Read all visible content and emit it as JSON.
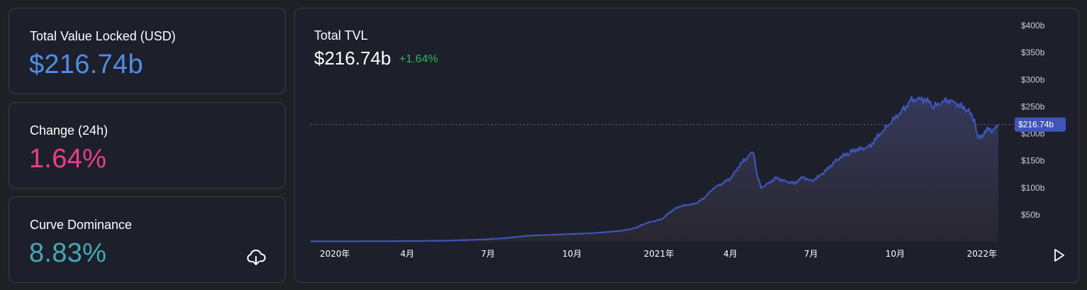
{
  "colors": {
    "tvl_value": "#4e8ee6",
    "change_value": "#e93f8d",
    "dominance_value": "#46a8b7",
    "line": "#3f55b8",
    "area_top": "#3a3d63",
    "positive_change": "#2eb457",
    "price_label_bg": "#3f55b8"
  },
  "stats": {
    "tvl": {
      "label": "Total Value Locked (USD)",
      "value": "$216.74b"
    },
    "change": {
      "label": "Change (24h)",
      "value": "1.64%"
    },
    "dominance": {
      "label": "Curve Dominance",
      "value": "8.83%",
      "download_icon": "cloud-download-icon"
    }
  },
  "chart": {
    "title": "Total TVL",
    "value": "$216.74b",
    "change": "+1.64%",
    "play_icon": "play-icon"
  },
  "chart_data": {
    "type": "area",
    "title": "Total TVL",
    "xlabel": "",
    "ylabel": "",
    "ylim": [
      0,
      400
    ],
    "y_unit": "b USD",
    "y_ticks": [
      50,
      100,
      150,
      200,
      250,
      300,
      350,
      400
    ],
    "y_tick_labels": [
      "$50b",
      "$100b",
      "$150b",
      "$200b",
      "$250b",
      "$300b",
      "$350b",
      "$400b"
    ],
    "x_tick_labels": [
      "2020年",
      "4月",
      "7月",
      "10月",
      "2021年",
      "4月",
      "7月",
      "10月",
      "2022年"
    ],
    "x_tick_dates": [
      "2020-01-01",
      "2020-04-01",
      "2020-07-01",
      "2020-10-01",
      "2021-01-01",
      "2021-04-01",
      "2021-07-01",
      "2021-10-01",
      "2022-01-01"
    ],
    "x_range": [
      "2020-01-01",
      "2022-02-16"
    ],
    "current_value": 216.74,
    "current_label": "$216.74b",
    "grid": false,
    "series": [
      {
        "x": [
          "2020-01-01",
          "2020-02-01",
          "2020-03-01",
          "2020-04-01",
          "2020-05-01",
          "2020-06-01",
          "2020-07-01",
          "2020-07-15",
          "2020-08-01",
          "2020-08-15",
          "2020-09-01",
          "2020-09-15",
          "2020-10-01",
          "2020-10-15",
          "2020-11-01",
          "2020-11-15",
          "2020-12-01",
          "2020-12-15",
          "2021-01-01",
          "2021-01-15",
          "2021-02-01",
          "2021-02-10",
          "2021-02-20",
          "2021-03-01",
          "2021-03-10",
          "2021-03-20",
          "2021-04-01",
          "2021-04-10",
          "2021-04-20",
          "2021-05-01",
          "2021-05-08",
          "2021-05-12",
          "2021-05-16",
          "2021-05-20",
          "2021-05-24",
          "2021-06-01",
          "2021-06-10",
          "2021-06-20",
          "2021-07-01",
          "2021-07-10",
          "2021-07-20",
          "2021-08-01",
          "2021-08-10",
          "2021-08-20",
          "2021-09-01",
          "2021-09-07",
          "2021-09-15",
          "2021-09-25",
          "2021-10-01",
          "2021-10-10",
          "2021-10-20",
          "2021-11-01",
          "2021-11-10",
          "2021-11-20",
          "2021-12-01",
          "2021-12-05",
          "2021-12-10",
          "2021-12-20",
          "2021-12-28",
          "2022-01-05",
          "2022-01-12",
          "2022-01-20",
          "2022-01-24",
          "2022-01-30",
          "2022-02-05",
          "2022-02-10",
          "2022-02-16"
        ],
        "values": [
          0.8,
          0.9,
          1.0,
          1.1,
          1.5,
          2.0,
          3.5,
          4.5,
          6.0,
          8.0,
          11.0,
          12.0,
          13.0,
          14.0,
          15.0,
          16.0,
          18.0,
          20.0,
          25.0,
          35.0,
          42.0,
          55.0,
          65.0,
          68.0,
          70.0,
          80.0,
          100.0,
          108.0,
          118.0,
          145.0,
          155.0,
          165.0,
          160.0,
          120.0,
          100.0,
          108.0,
          118.0,
          112.0,
          108.0,
          120.0,
          112.0,
          125.0,
          140.0,
          155.0,
          165.0,
          170.0,
          172.0,
          178.0,
          192.0,
          208.0,
          225.0,
          245.0,
          262.0,
          265.0,
          258.0,
          250.0,
          255.0,
          262.0,
          258.0,
          250.0,
          245.0,
          225.0,
          192.0,
          198.0,
          210.0,
          205.0,
          216.74
        ]
      }
    ]
  }
}
